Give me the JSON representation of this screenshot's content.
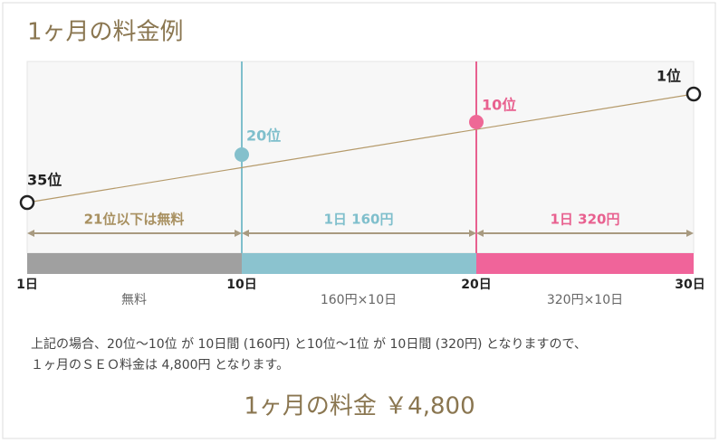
{
  "title": "1ヶ月の料金例",
  "ranks": [
    "35位",
    "20位",
    "10位",
    "1位"
  ],
  "ranges": [
    "21位以下は無料",
    "1日 160円",
    "1日 320円"
  ],
  "days": [
    "1日",
    "10日",
    "20日",
    "30日"
  ],
  "fees": [
    "無料",
    "160円×10日",
    "320円×10日"
  ],
  "note": [
    "上記の場合、20位〜10位 が 10日間 (160円) と10位〜1位 が 10日間 (320円) となりますので、",
    "１ヶ月のＳＥＯ料金は 4,800円 となります。"
  ],
  "total": "1ヶ月の料金 ￥4,800"
}
